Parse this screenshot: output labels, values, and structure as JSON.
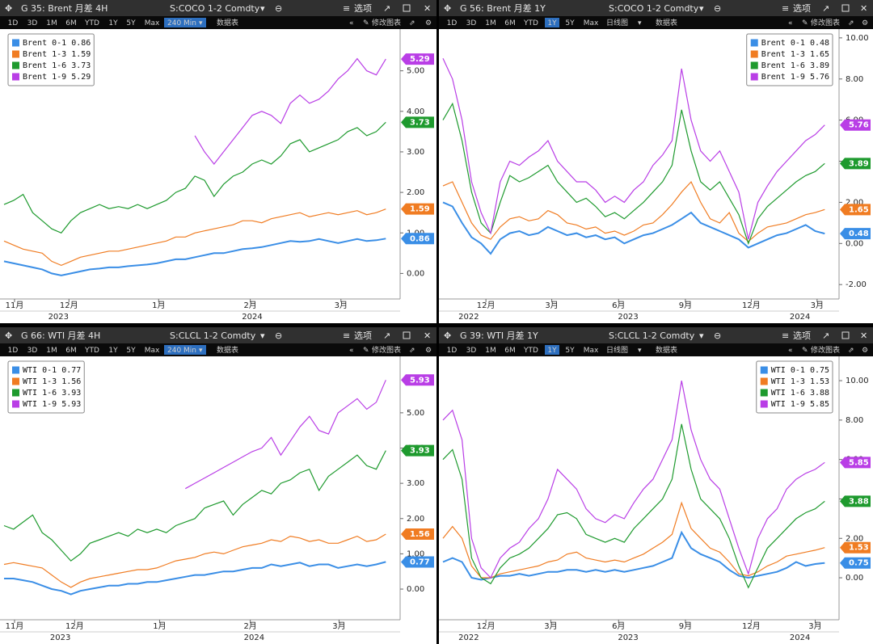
{
  "chart_data": [
    {
      "type": "line",
      "panel_title": "G 35: Brent 月差 4H",
      "security": "S:COCO 1-2 Comdty",
      "options": "选项",
      "periods": [
        "1D",
        "3D",
        "1M",
        "6M",
        "YTD",
        "1Y",
        "5Y",
        "Max"
      ],
      "interval": "240 Min",
      "highlight": "240 Min",
      "table_button": "数据表",
      "edit_button": "修改图表",
      "legend": "upper left",
      "xlim": [
        0,
        41.5
      ],
      "xticks": [
        {
          "value": 1.1,
          "label": "11月"
        },
        {
          "value": 6.8,
          "label": "12月"
        },
        {
          "value": 16.2,
          "label": "1月"
        },
        {
          "value": 25.8,
          "label": "2月"
        },
        {
          "value": 35.3,
          "label": "3月"
        }
      ],
      "xticks2": [
        {
          "value": 5.7,
          "label": "2023"
        },
        {
          "value": 26.0,
          "label": "2024"
        }
      ],
      "ylim": [
        -0.63,
        5.95
      ],
      "yticks": [
        {
          "value": 0,
          "label": "0.00"
        },
        {
          "value": 1,
          "label": "1.00"
        },
        {
          "value": 2,
          "label": "2.00"
        },
        {
          "value": 3,
          "label": "3.00"
        },
        {
          "value": 4,
          "label": "4.00"
        },
        {
          "value": 5,
          "label": "5.00"
        }
      ],
      "series": [
        {
          "name": "Brent 0-1",
          "color": "#3a8ee6",
          "values": [
            0.3,
            0.25,
            0.2,
            0.15,
            0.1,
            0.0,
            -0.05,
            0.0,
            0.05,
            0.1,
            0.12,
            0.15,
            0.15,
            0.18,
            0.2,
            0.22,
            0.25,
            0.3,
            0.35,
            0.35,
            0.4,
            0.45,
            0.5,
            0.5,
            0.55,
            0.6,
            0.62,
            0.65,
            0.7,
            0.75,
            0.8,
            0.78,
            0.8,
            0.85,
            0.8,
            0.75,
            0.8,
            0.85,
            0.8,
            0.82,
            0.86
          ]
        },
        {
          "name": "Brent 1-3",
          "color": "#f07c22",
          "values": [
            0.8,
            0.7,
            0.6,
            0.55,
            0.5,
            0.3,
            0.2,
            0.3,
            0.4,
            0.45,
            0.5,
            0.55,
            0.55,
            0.6,
            0.65,
            0.7,
            0.75,
            0.8,
            0.9,
            0.9,
            1.0,
            1.05,
            1.1,
            1.15,
            1.2,
            1.3,
            1.3,
            1.25,
            1.35,
            1.4,
            1.45,
            1.5,
            1.4,
            1.45,
            1.5,
            1.45,
            1.5,
            1.55,
            1.45,
            1.5,
            1.59
          ]
        },
        {
          "name": "Brent 1-6",
          "color": "#1e9a2e",
          "values": [
            1.7,
            1.8,
            1.95,
            1.5,
            1.3,
            1.1,
            1.0,
            1.3,
            1.5,
            1.6,
            1.7,
            1.6,
            1.65,
            1.6,
            1.7,
            1.6,
            1.7,
            1.8,
            2.0,
            2.1,
            2.4,
            2.3,
            1.9,
            2.2,
            2.4,
            2.5,
            2.7,
            2.8,
            2.7,
            2.9,
            3.2,
            3.3,
            3.0,
            3.1,
            3.2,
            3.3,
            3.5,
            3.6,
            3.4,
            3.5,
            3.73
          ]
        },
        {
          "name": "Brent 1-9",
          "color": "#b93ee6",
          "values": [
            null,
            null,
            null,
            null,
            null,
            null,
            null,
            null,
            null,
            null,
            null,
            null,
            null,
            null,
            null,
            null,
            null,
            null,
            null,
            null,
            3.4,
            3.0,
            2.7,
            3.0,
            3.3,
            3.6,
            3.9,
            4.0,
            3.9,
            3.7,
            4.2,
            4.4,
            4.2,
            4.3,
            4.5,
            4.8,
            5.0,
            5.3,
            5.0,
            4.9,
            5.29
          ]
        }
      ]
    },
    {
      "type": "line",
      "panel_title": "G 56: Brent 月差 1Y",
      "security": "S:COCO 1-2 Comdty",
      "options": "选项",
      "periods": [
        "1D",
        "3D",
        "1M",
        "6M",
        "YTD",
        "1Y",
        "5Y",
        "Max"
      ],
      "interval": "日线图",
      "highlight": "1Y",
      "table_button": "数据表",
      "edit_button": "修改图表",
      "legend": "upper right",
      "xlim": [
        0,
        41.5
      ],
      "xticks": [
        {
          "value": 4.5,
          "label": "12月"
        },
        {
          "value": 11.4,
          "label": "3月"
        },
        {
          "value": 18.4,
          "label": "6月"
        },
        {
          "value": 25.4,
          "label": "9月"
        },
        {
          "value": 32.3,
          "label": "12月"
        },
        {
          "value": 39.2,
          "label": "3月"
        }
      ],
      "xticks2": [
        {
          "value": 2.7,
          "label": "2022"
        },
        {
          "value": 19.4,
          "label": "2023"
        },
        {
          "value": 37.4,
          "label": "2024"
        }
      ],
      "ylim": [
        -2.7,
        10.27
      ],
      "yticks": [
        {
          "value": -2,
          "label": "-2.00"
        },
        {
          "value": 0,
          "label": "0.00"
        },
        {
          "value": 2,
          "label": "2.00"
        },
        {
          "value": 4,
          "label": "4.00"
        },
        {
          "value": 6,
          "label": "6.00"
        },
        {
          "value": 8,
          "label": "8.00"
        },
        {
          "value": 10,
          "label": "10.00"
        }
      ],
      "series": [
        {
          "name": "Brent 0-1",
          "color": "#3a8ee6",
          "values": [
            2.0,
            1.8,
            1.0,
            0.3,
            0.0,
            -0.5,
            0.2,
            0.5,
            0.6,
            0.4,
            0.5,
            0.8,
            0.6,
            0.4,
            0.5,
            0.3,
            0.4,
            0.2,
            0.3,
            0.0,
            0.2,
            0.4,
            0.5,
            0.7,
            0.9,
            1.2,
            1.5,
            1.0,
            0.8,
            0.6,
            0.4,
            0.2,
            -0.2,
            0.0,
            0.2,
            0.4,
            0.5,
            0.7,
            0.9,
            0.6,
            0.48
          ]
        },
        {
          "name": "Brent 1-3",
          "color": "#f07c22",
          "values": [
            2.8,
            3.0,
            2.0,
            1.0,
            0.4,
            0.2,
            0.8,
            1.2,
            1.3,
            1.1,
            1.2,
            1.6,
            1.4,
            1.0,
            0.9,
            0.7,
            0.8,
            0.5,
            0.6,
            0.4,
            0.6,
            0.9,
            1.0,
            1.4,
            1.9,
            2.5,
            3.0,
            2.0,
            1.2,
            1.0,
            1.5,
            0.5,
            0.1,
            0.5,
            0.8,
            0.9,
            1.0,
            1.2,
            1.4,
            1.5,
            1.65
          ]
        },
        {
          "name": "Brent 1-6",
          "color": "#1e9a2e",
          "values": [
            6.0,
            6.8,
            5.0,
            2.5,
            1.0,
            0.5,
            2.0,
            3.3,
            3.0,
            3.2,
            3.5,
            3.8,
            3.0,
            2.5,
            2.0,
            2.2,
            1.8,
            1.3,
            1.5,
            1.2,
            1.6,
            2.0,
            2.5,
            3.0,
            3.8,
            6.5,
            4.5,
            3.0,
            2.6,
            3.0,
            2.2,
            1.4,
            0.0,
            1.2,
            1.8,
            2.2,
            2.6,
            3.0,
            3.3,
            3.5,
            3.89
          ]
        },
        {
          "name": "Brent 1-9",
          "color": "#b93ee6",
          "values": [
            9.0,
            8.0,
            6.0,
            3.0,
            1.5,
            0.5,
            3.0,
            4.0,
            3.8,
            4.2,
            4.5,
            5.0,
            4.0,
            3.5,
            3.0,
            3.0,
            2.6,
            2.0,
            2.3,
            2.0,
            2.6,
            3.0,
            3.8,
            4.3,
            5.0,
            8.5,
            6.0,
            4.5,
            4.0,
            4.5,
            3.5,
            2.5,
            0.2,
            2.0,
            2.8,
            3.5,
            4.0,
            4.5,
            5.0,
            5.3,
            5.76
          ]
        }
      ]
    },
    {
      "type": "line",
      "panel_title": "G 66: WTI 月差 4H",
      "security": "S:CLCL 1-2 Comdty",
      "options": "选项",
      "periods": [
        "1D",
        "3D",
        "1M",
        "6M",
        "YTD",
        "1Y",
        "5Y",
        "Max"
      ],
      "interval": "240 Min",
      "highlight": "240 Min",
      "table_button": "数据表",
      "edit_button": "修改图表",
      "legend": "upper left",
      "xlim": [
        0,
        41.5
      ],
      "xticks": [
        {
          "value": 1.1,
          "label": "11月"
        },
        {
          "value": 7.4,
          "label": "12月"
        },
        {
          "value": 16.3,
          "label": "1月"
        },
        {
          "value": 25.8,
          "label": "2月"
        },
        {
          "value": 35.1,
          "label": "3月"
        }
      ],
      "xticks2": [
        {
          "value": 5.9,
          "label": "2023"
        },
        {
          "value": 26.2,
          "label": "2024"
        }
      ],
      "ylim": [
        -0.87,
        6.51
      ],
      "yticks": [
        {
          "value": 0,
          "label": "0.00"
        },
        {
          "value": 1,
          "label": "1.00"
        },
        {
          "value": 2,
          "label": "2.00"
        },
        {
          "value": 3,
          "label": "3.00"
        },
        {
          "value": 4,
          "label": "4.00"
        },
        {
          "value": 5,
          "label": "5.00"
        }
      ],
      "series": [
        {
          "name": "WTI 0-1",
          "color": "#3a8ee6",
          "values": [
            0.3,
            0.3,
            0.25,
            0.2,
            0.1,
            0.0,
            -0.05,
            -0.15,
            -0.05,
            0.0,
            0.05,
            0.1,
            0.1,
            0.15,
            0.15,
            0.2,
            0.2,
            0.25,
            0.3,
            0.35,
            0.4,
            0.4,
            0.45,
            0.5,
            0.5,
            0.55,
            0.6,
            0.6,
            0.7,
            0.65,
            0.7,
            0.75,
            0.65,
            0.7,
            0.7,
            0.6,
            0.65,
            0.7,
            0.65,
            0.7,
            0.77
          ]
        },
        {
          "name": "WTI 1-3",
          "color": "#f07c22",
          "values": [
            0.7,
            0.75,
            0.7,
            0.65,
            0.6,
            0.4,
            0.2,
            0.05,
            0.2,
            0.3,
            0.35,
            0.4,
            0.45,
            0.5,
            0.55,
            0.55,
            0.6,
            0.7,
            0.8,
            0.85,
            0.9,
            1.0,
            1.05,
            1.0,
            1.1,
            1.2,
            1.25,
            1.3,
            1.4,
            1.35,
            1.5,
            1.45,
            1.35,
            1.4,
            1.3,
            1.3,
            1.4,
            1.5,
            1.35,
            1.4,
            1.56
          ]
        },
        {
          "name": "WTI 1-6",
          "color": "#1e9a2e",
          "values": [
            1.8,
            1.7,
            1.9,
            2.1,
            1.6,
            1.4,
            1.1,
            0.8,
            1.0,
            1.3,
            1.4,
            1.5,
            1.6,
            1.5,
            1.7,
            1.6,
            1.7,
            1.6,
            1.8,
            1.9,
            2.0,
            2.3,
            2.4,
            2.5,
            2.1,
            2.4,
            2.6,
            2.8,
            2.7,
            3.0,
            3.1,
            3.3,
            3.4,
            2.8,
            3.2,
            3.4,
            3.6,
            3.8,
            3.5,
            3.4,
            3.93
          ]
        },
        {
          "name": "WTI 1-9",
          "color": "#b93ee6",
          "values": [
            null,
            null,
            null,
            null,
            null,
            null,
            null,
            null,
            null,
            null,
            null,
            null,
            null,
            null,
            null,
            null,
            null,
            null,
            null,
            2.85,
            3.0,
            3.15,
            3.3,
            3.45,
            3.6,
            3.75,
            3.9,
            4.0,
            4.3,
            3.8,
            4.2,
            4.6,
            4.9,
            4.5,
            4.4,
            5.0,
            5.2,
            5.4,
            5.1,
            5.3,
            5.93
          ]
        }
      ]
    },
    {
      "type": "line",
      "panel_title": "G 39: WTI 月差 1Y",
      "security": "S:CLCL 1-2 Comdty",
      "options": "选项",
      "periods": [
        "1D",
        "3D",
        "1M",
        "6M",
        "YTD",
        "1Y",
        "5Y",
        "Max"
      ],
      "interval": "日线图",
      "highlight": "1Y",
      "table_button": "数据表",
      "edit_button": "修改图表",
      "legend": "upper right",
      "xlim": [
        0,
        41.5
      ],
      "xticks": [
        {
          "value": 4.5,
          "label": "12月"
        },
        {
          "value": 11.3,
          "label": "3月"
        },
        {
          "value": 18.4,
          "label": "6月"
        },
        {
          "value": 25.4,
          "label": "9月"
        },
        {
          "value": 32.3,
          "label": "12月"
        },
        {
          "value": 39.0,
          "label": "3月"
        }
      ],
      "xticks2": [
        {
          "value": 2.7,
          "label": "2022"
        },
        {
          "value": 19.4,
          "label": "2023"
        },
        {
          "value": 37.4,
          "label": "2024"
        }
      ],
      "ylim": [
        -2.13,
        11.07
      ],
      "yticks": [
        {
          "value": 0,
          "label": "0.00"
        },
        {
          "value": 2,
          "label": "2.00"
        },
        {
          "value": 4,
          "label": "4.00"
        },
        {
          "value": 6,
          "label": "6.00"
        },
        {
          "value": 8,
          "label": "8.00"
        },
        {
          "value": 10,
          "label": "10.00"
        }
      ],
      "series": [
        {
          "name": "WTI 0-1",
          "color": "#3a8ee6",
          "values": [
            0.8,
            1.0,
            0.8,
            0.0,
            -0.1,
            0.0,
            0.1,
            0.1,
            0.2,
            0.1,
            0.2,
            0.3,
            0.3,
            0.4,
            0.4,
            0.3,
            0.4,
            0.3,
            0.4,
            0.3,
            0.4,
            0.5,
            0.6,
            0.8,
            1.0,
            2.3,
            1.5,
            1.2,
            1.0,
            0.8,
            0.4,
            0.1,
            0.0,
            0.1,
            0.2,
            0.3,
            0.5,
            0.8,
            0.6,
            0.7,
            0.75
          ]
        },
        {
          "name": "WTI 1-3",
          "color": "#f07c22",
          "values": [
            2.0,
            2.6,
            2.0,
            0.6,
            0.0,
            0.0,
            0.2,
            0.3,
            0.4,
            0.5,
            0.6,
            0.8,
            0.9,
            1.2,
            1.3,
            1.0,
            0.9,
            0.8,
            0.9,
            0.8,
            1.0,
            1.2,
            1.5,
            1.8,
            2.2,
            3.8,
            2.5,
            2.0,
            1.5,
            1.3,
            0.8,
            0.2,
            0.1,
            0.3,
            0.6,
            0.8,
            1.1,
            1.2,
            1.3,
            1.4,
            1.53
          ]
        },
        {
          "name": "WTI 1-6",
          "color": "#1e9a2e",
          "values": [
            6.0,
            6.5,
            5.0,
            1.0,
            0.0,
            -0.3,
            0.5,
            1.0,
            1.2,
            1.5,
            2.0,
            2.5,
            3.2,
            3.3,
            3.0,
            2.2,
            2.0,
            1.8,
            2.0,
            1.8,
            2.5,
            3.0,
            3.5,
            4.0,
            5.0,
            7.8,
            5.5,
            4.0,
            3.5,
            3.0,
            2.0,
            0.6,
            -0.5,
            0.5,
            1.5,
            2.0,
            2.5,
            3.0,
            3.3,
            3.5,
            3.88
          ]
        },
        {
          "name": "WTI 1-9",
          "color": "#b93ee6",
          "values": [
            8.0,
            8.5,
            7.0,
            2.0,
            0.5,
            0.0,
            1.0,
            1.5,
            1.8,
            2.5,
            3.0,
            4.0,
            5.5,
            5.0,
            4.5,
            3.5,
            3.0,
            2.8,
            3.2,
            3.0,
            3.8,
            4.5,
            5.0,
            6.0,
            7.0,
            10.0,
            7.5,
            6.0,
            5.0,
            4.5,
            3.0,
            1.5,
            0.2,
            2.0,
            3.0,
            3.5,
            4.5,
            5.0,
            5.3,
            5.5,
            5.85
          ]
        }
      ]
    }
  ]
}
